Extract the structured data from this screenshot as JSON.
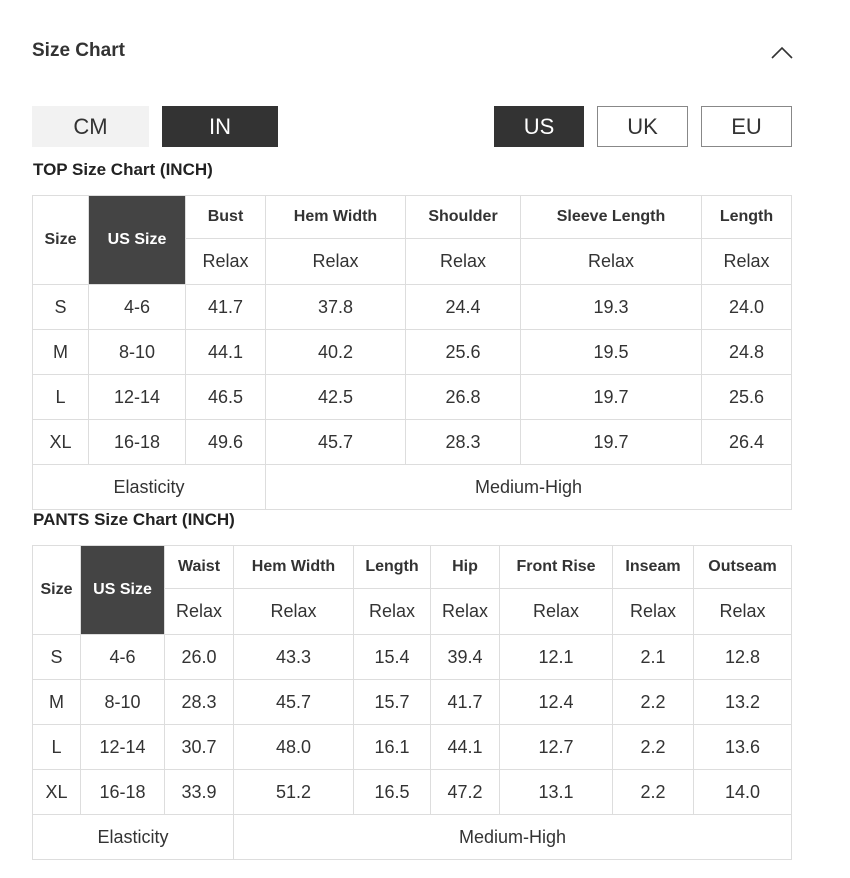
{
  "header": {
    "title": "Size Chart"
  },
  "unit_options": [
    "CM",
    "IN"
  ],
  "region_options": [
    "US",
    "UK",
    "EU"
  ],
  "tables": [
    {
      "title": "TOP Size Chart (INCH)",
      "size_header": "Size",
      "us_size_header": "US Size",
      "columns": [
        "Bust",
        "Hem Width",
        "Shoulder",
        "Sleeve Length",
        "Length"
      ],
      "fit": [
        "Relax",
        "Relax",
        "Relax",
        "Relax",
        "Relax"
      ],
      "rows": [
        [
          "S",
          "4-6",
          "41.7",
          "37.8",
          "24.4",
          "19.3",
          "24.0"
        ],
        [
          "M",
          "8-10",
          "44.1",
          "40.2",
          "25.6",
          "19.5",
          "24.8"
        ],
        [
          "L",
          "12-14",
          "46.5",
          "42.5",
          "26.8",
          "19.7",
          "25.6"
        ],
        [
          "XL",
          "16-18",
          "49.6",
          "45.7",
          "28.3",
          "19.7",
          "26.4"
        ]
      ],
      "elasticity": {
        "label": "Elasticity",
        "value": "Medium-High"
      }
    },
    {
      "title": "PANTS Size Chart (INCH)",
      "size_header": "Size",
      "us_size_header": "US Size",
      "columns": [
        "Waist",
        "Hem Width",
        "Length",
        "Hip",
        "Front Rise",
        "Inseam",
        "Outseam"
      ],
      "fit": [
        "Relax",
        "Relax",
        "Relax",
        "Relax",
        "Relax",
        "Relax",
        "Relax"
      ],
      "rows": [
        [
          "S",
          "4-6",
          "26.0",
          "43.3",
          "15.4",
          "39.4",
          "12.1",
          "2.1",
          "12.8"
        ],
        [
          "M",
          "8-10",
          "28.3",
          "45.7",
          "15.7",
          "41.7",
          "12.4",
          "2.2",
          "13.2"
        ],
        [
          "L",
          "12-14",
          "30.7",
          "48.0",
          "16.1",
          "44.1",
          "12.7",
          "2.2",
          "13.6"
        ],
        [
          "XL",
          "16-18",
          "33.9",
          "51.2",
          "16.5",
          "47.2",
          "13.1",
          "2.2",
          "14.0"
        ]
      ],
      "elasticity": {
        "label": "Elasticity",
        "value": "Medium-High"
      }
    }
  ]
}
